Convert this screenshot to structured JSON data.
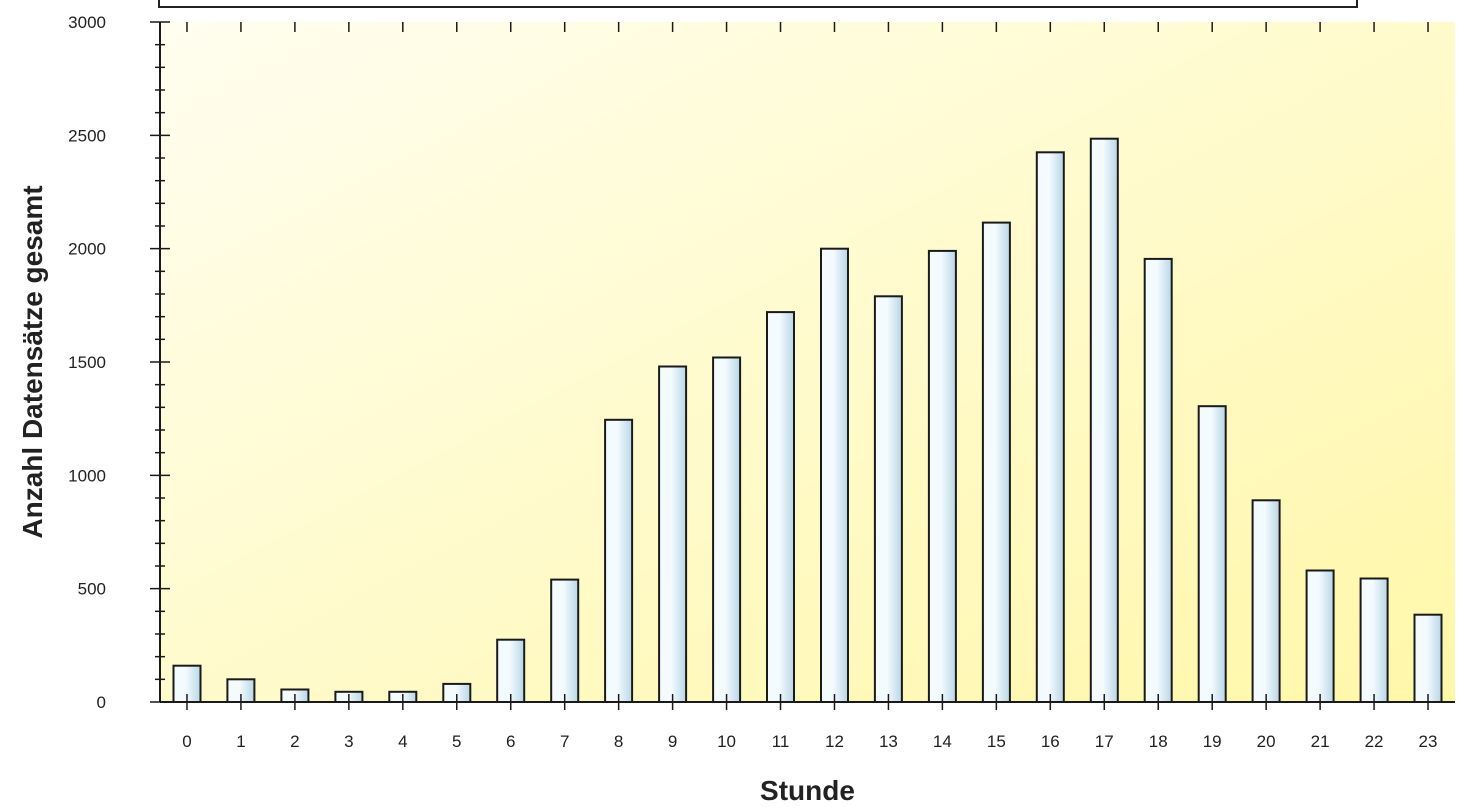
{
  "chart_data": {
    "type": "bar",
    "title": "",
    "xlabel": "Stunde",
    "ylabel": "Anzahl Datensätze gesamt",
    "ylim": [
      0,
      3000
    ],
    "yticks": [
      0,
      500,
      1000,
      1500,
      2000,
      2500,
      3000
    ],
    "categories": [
      "0",
      "1",
      "2",
      "3",
      "4",
      "5",
      "6",
      "7",
      "8",
      "9",
      "10",
      "11",
      "12",
      "13",
      "14",
      "15",
      "16",
      "17",
      "18",
      "19",
      "20",
      "21",
      "22",
      "23"
    ],
    "values": [
      160,
      100,
      55,
      45,
      45,
      80,
      275,
      540,
      1245,
      1480,
      1520,
      1720,
      2000,
      1790,
      1990,
      2115,
      2425,
      2485,
      1955,
      1305,
      890,
      580,
      545,
      385
    ],
    "grid": false,
    "legend": "none",
    "colors": {
      "plot_background_start": "#fffef0",
      "plot_background_end": "#fff7a8",
      "bar_fill_light": "#f4fbff",
      "bar_fill_dark": "#b9d6e6",
      "bar_stroke": "#1a1a1a",
      "axis": "#1a1a1a",
      "text": "#222222"
    }
  }
}
